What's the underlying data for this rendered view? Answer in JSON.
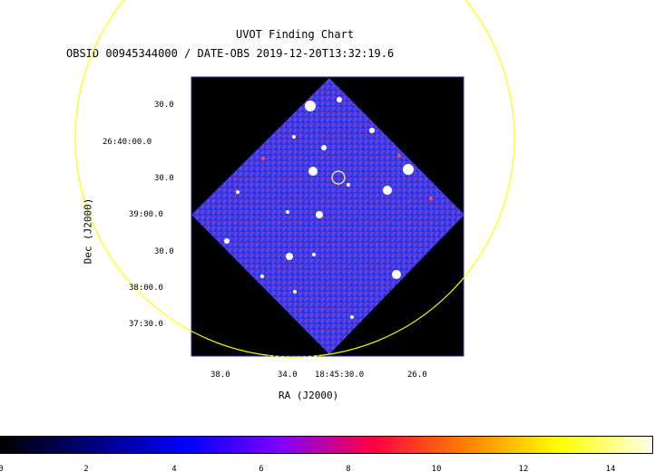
{
  "title": "UVOT Finding Chart",
  "subtitle": "OBSID 00945344000 / DATE-OBS 2019-12-20T13:32:19.6",
  "axes": {
    "xlabel": "RA (J2000)",
    "ylabel": "Dec (J2000)",
    "x_ticks": [
      "38.0",
      "34.0",
      "18:45:30.0",
      "26.0"
    ],
    "y_ticks": [
      "30.0",
      "26:40:00.0",
      "30.0",
      "39:00.0",
      "30.0",
      "38:00.0",
      "37:30.0"
    ]
  },
  "colorbar": {
    "ticks": [
      "0",
      "2",
      "4",
      "6",
      "8",
      "10",
      "12",
      "14"
    ],
    "stops": [
      "#000000",
      "#000080",
      "#0000ff",
      "#8000ff",
      "#ff0040",
      "#ff8000",
      "#ffff00",
      "#ffffe8"
    ]
  },
  "colors": {
    "frame": "#000000",
    "exposure": "#3a3ae6",
    "circle": "#ffff00",
    "target_marker": "#ffff80",
    "source": "#ffffff"
  }
}
